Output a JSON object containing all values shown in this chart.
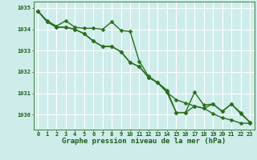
{
  "line1": {
    "x": [
      0,
      1,
      2,
      3,
      4,
      5,
      6,
      7,
      8,
      9,
      10,
      11,
      12,
      13,
      14,
      15,
      16,
      17,
      18,
      19,
      20,
      21,
      22,
      23
    ],
    "y": [
      1034.85,
      1034.4,
      1034.15,
      1034.4,
      1034.1,
      1034.05,
      1034.05,
      1034.0,
      1034.35,
      1033.95,
      1033.9,
      1032.5,
      1031.8,
      1031.5,
      1031.15,
      1030.1,
      1030.1,
      1031.05,
      1030.45,
      1030.5,
      1030.15,
      1030.5,
      1030.1,
      1029.65
    ],
    "color": "#2a6e1e",
    "linewidth": 1.0,
    "markersize": 2.5
  },
  "line2": {
    "x": [
      0,
      1,
      2,
      3,
      4,
      5,
      6,
      7,
      8,
      9,
      10,
      11,
      12,
      13,
      14,
      15,
      16,
      17,
      18,
      19,
      20,
      21,
      22,
      23
    ],
    "y": [
      1034.85,
      1034.35,
      1034.1,
      1034.1,
      1034.0,
      1033.8,
      1033.45,
      1033.2,
      1033.2,
      1032.95,
      1032.45,
      1032.25,
      1031.75,
      1031.5,
      1031.05,
      1030.7,
      1030.55,
      1030.4,
      1030.3,
      1030.05,
      1029.85,
      1029.75,
      1029.6,
      1029.6
    ],
    "color": "#2a6e1e",
    "linewidth": 1.0,
    "markersize": 2.5
  },
  "line3": {
    "x": [
      0,
      1,
      2,
      3,
      4,
      5,
      6,
      7,
      8,
      9,
      10,
      11,
      12,
      13,
      14,
      15,
      16,
      17,
      18,
      19,
      20,
      21,
      22,
      23
    ],
    "y": [
      1034.85,
      1034.35,
      1034.1,
      1034.1,
      1034.0,
      1033.8,
      1033.45,
      1033.2,
      1033.2,
      1032.95,
      1032.45,
      1032.25,
      1031.75,
      1031.5,
      1031.05,
      1030.1,
      1030.1,
      1030.4,
      1030.3,
      1030.5,
      1030.15,
      1030.5,
      1030.05,
      1029.65
    ],
    "color": "#2a6e1e",
    "linewidth": 1.0,
    "markersize": 2.5
  },
  "xlabel": "Graphe pression niveau de la mer (hPa)",
  "xlabel_fontsize": 6.5,
  "xlabel_color": "#1a5c18",
  "bg_color": "#ceecea",
  "grid_color": "#ffffff",
  "axis_color": "#2a6e1e",
  "tick_color": "#1a5c18",
  "ylim": [
    1029.3,
    1035.3
  ],
  "yticks": [
    1030,
    1031,
    1032,
    1033,
    1034,
    1035
  ],
  "xlim": [
    -0.5,
    23.5
  ],
  "xticks": [
    0,
    1,
    2,
    3,
    4,
    5,
    6,
    7,
    8,
    9,
    10,
    11,
    12,
    13,
    14,
    15,
    16,
    17,
    18,
    19,
    20,
    21,
    22,
    23
  ],
  "tick_fontsize": 5.0
}
